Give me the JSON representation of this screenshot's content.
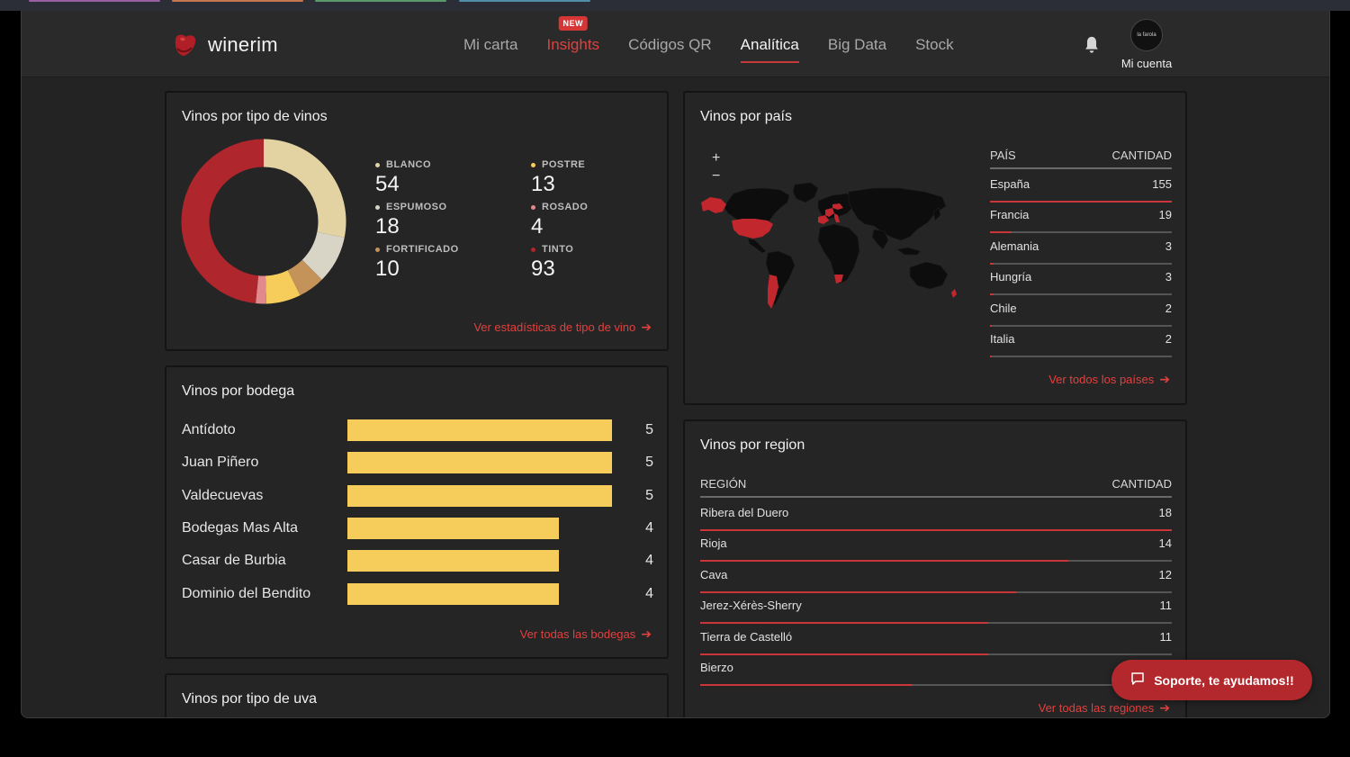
{
  "app": {
    "name": "winerim"
  },
  "nav": {
    "items": [
      {
        "label": "Mi carta",
        "key": "mi-carta"
      },
      {
        "label": "Insights",
        "key": "insights",
        "badge": "NEW"
      },
      {
        "label": "Códigos QR",
        "key": "codigos-qr"
      },
      {
        "label": "Analítica",
        "key": "analitica",
        "active": true
      },
      {
        "label": "Big Data",
        "key": "big-data"
      },
      {
        "label": "Stock",
        "key": "stock"
      }
    ],
    "account_label": "Mi cuenta",
    "avatar_text": "la farola"
  },
  "wine_types": {
    "title": "Vinos por tipo de vinos",
    "link": "Ver estadísticas de tipo de vino",
    "items": [
      {
        "label": "BLANCO",
        "value": 54,
        "color": "#e3d3a2"
      },
      {
        "label": "POSTRE",
        "value": 13,
        "color": "#f6cd5a"
      },
      {
        "label": "ESPUMOSO",
        "value": 18,
        "color": "#d8d4c6"
      },
      {
        "label": "ROSADO",
        "value": 4,
        "color": "#e08a8e"
      },
      {
        "label": "FORTIFICADO",
        "value": 10,
        "color": "#c4935a"
      },
      {
        "label": "TINTO",
        "value": 93,
        "color": "#b0262d"
      }
    ]
  },
  "bodegas": {
    "title": "Vinos por bodega",
    "link": "Ver todas las bodegas",
    "max": 5,
    "items": [
      {
        "name": "Antídoto",
        "value": 5
      },
      {
        "name": "Juan Piñero",
        "value": 5
      },
      {
        "name": "Valdecuevas",
        "value": 5
      },
      {
        "name": "Bodegas Mas Alta",
        "value": 4
      },
      {
        "name": "Casar de Burbia",
        "value": 4
      },
      {
        "name": "Dominio del Bendito",
        "value": 4
      }
    ]
  },
  "uva": {
    "title": "Vinos por tipo de uva"
  },
  "paises": {
    "title": "Vinos por país",
    "col_name": "PAÍS",
    "col_qty": "CANTIDAD",
    "link": "Ver todos los países",
    "zoom_in": "+",
    "zoom_out": "−",
    "rows": [
      {
        "name": "España",
        "value": 155,
        "fraction": 1.0
      },
      {
        "name": "Francia",
        "value": 19,
        "fraction": 0.12
      },
      {
        "name": "Alemania",
        "value": 3,
        "fraction": 0.02
      },
      {
        "name": "Hungría",
        "value": 3,
        "fraction": 0.02
      },
      {
        "name": "Chile",
        "value": 2,
        "fraction": 0.01
      },
      {
        "name": "Italia",
        "value": 2,
        "fraction": 0.01
      }
    ]
  },
  "regiones": {
    "title": "Vinos por region",
    "col_name": "REGIÓN",
    "col_qty": "CANTIDAD",
    "link": "Ver todas las regiones",
    "rows": [
      {
        "name": "Ribera del Duero",
        "value": 18,
        "fraction": 1.0
      },
      {
        "name": "Rioja",
        "value": 14,
        "fraction": 0.78
      },
      {
        "name": "Cava",
        "value": 12,
        "fraction": 0.67
      },
      {
        "name": "Jerez-Xérès-Sherry",
        "value": 11,
        "fraction": 0.61
      },
      {
        "name": "Tierra de Castelló",
        "value": 11,
        "fraction": 0.61
      },
      {
        "name": "Bierzo",
        "value": "",
        "fraction": 0.45
      }
    ]
  },
  "support": {
    "label": "Soporte, te ayudamos!!"
  }
}
